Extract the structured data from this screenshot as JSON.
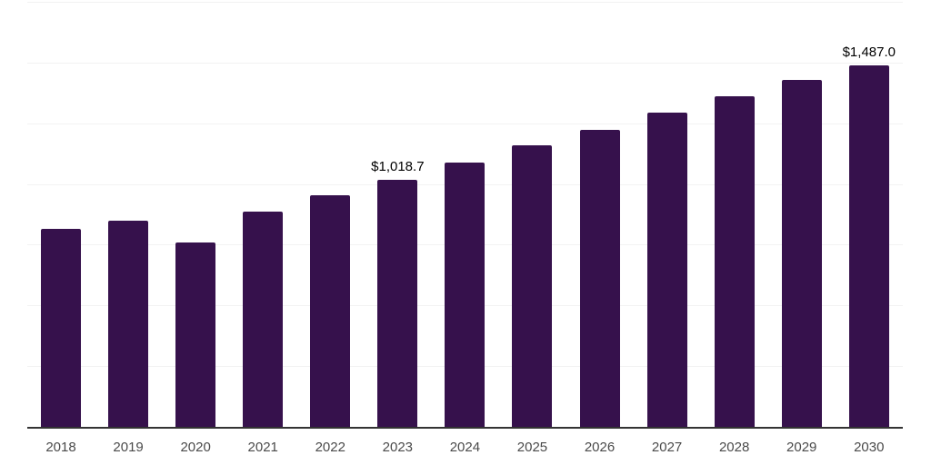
{
  "chart_data": {
    "type": "bar",
    "title": "",
    "xlabel": "",
    "ylabel": "",
    "categories": [
      "2018",
      "2019",
      "2020",
      "2021",
      "2022",
      "2023",
      "2024",
      "2025",
      "2026",
      "2027",
      "2028",
      "2029",
      "2030"
    ],
    "values": [
      816,
      847,
      760,
      886,
      952,
      1018.7,
      1089,
      1159,
      1222,
      1295,
      1362,
      1428,
      1487
    ],
    "data_labels": [
      "",
      "",
      "",
      "",
      "",
      "$1,018.7",
      "",
      "",
      "",
      "",
      "",
      "",
      "$1,487.0"
    ],
    "ylim": [
      0,
      1750
    ],
    "grid_step": 250,
    "grid": "horizontal gridlines only, no y-axis tick labels",
    "legend": "none",
    "colors": {
      "bar": "#36114C",
      "gridline": "#F2F2F2",
      "axis_line": "#333333",
      "data_label_text": "#000000",
      "tick_label_text": "#4A4A4A",
      "background": "#FFFFFF"
    }
  }
}
